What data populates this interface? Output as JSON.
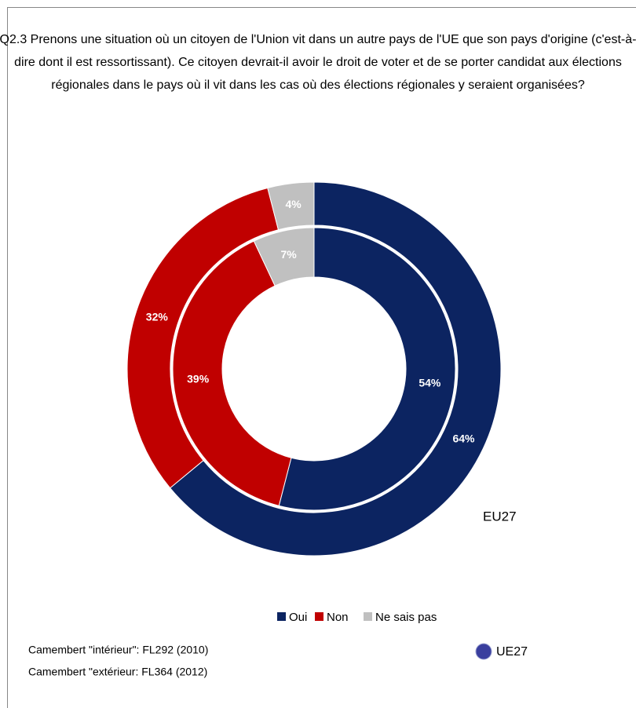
{
  "chart_data": {
    "type": "donut",
    "title": "Q2.3 Prenons une situation où un citoyen de l'Union vit dans un autre pays de l'UE que son pays d'origine (c'est-à-dire dont il est ressortissant). Ce citoyen devrait-il avoir le droit de voter et de se porter candidat aux élections régionales dans le pays où il vit dans les cas où des élections régionales y seraient organisées?",
    "categories": [
      "Oui",
      "Non",
      "Ne sais pas"
    ],
    "colors": [
      "#0c2461",
      "#c00000",
      "#c0c0c0"
    ],
    "series": [
      {
        "values": [
          54,
          39,
          7
        ],
        "value_labels": [
          "54%",
          "39%",
          "7%"
        ]
      },
      {
        "values": [
          64,
          32,
          4
        ],
        "value_labels": [
          "64%",
          "32%",
          "4%"
        ]
      }
    ],
    "annotation": "EU27",
    "notes": [
      "Camembert \"intérieur\":  FL292 (2010)",
      "Camembert \"extérieur: FL364 (2012)"
    ],
    "badge": "UE27",
    "legend": "bottom"
  }
}
